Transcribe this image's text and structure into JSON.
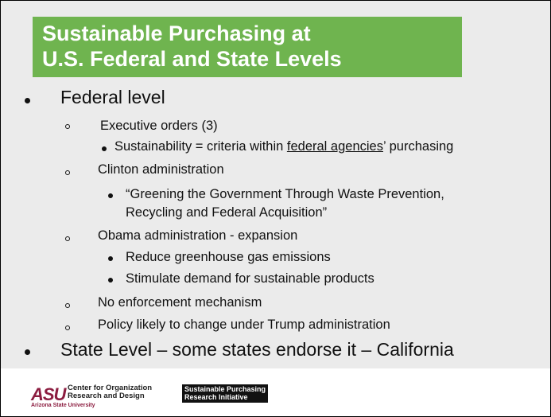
{
  "slide": {
    "title": [
      "Sustainable Purchasing at",
      "U.S. Federal and State Levels"
    ],
    "items": [
      {
        "text": "Federal level"
      },
      {
        "text": "Executive orders (3)"
      },
      {
        "parts": [
          "Sustainability = criteria within ",
          "federal agencies",
          "’ purchasing"
        ]
      },
      {
        "text": "Clinton administration"
      },
      {
        "lines": [
          "“Greening the Government Through Waste Prevention,",
          "Recycling and Federal Acquisition”"
        ]
      },
      {
        "text": "Obama administration - expansion"
      },
      {
        "text": "Reduce greenhouse gas emissions"
      },
      {
        "text": "Stimulate demand for sustainable products"
      },
      {
        "text": "No enforcement mechanism"
      },
      {
        "text": "Policy likely to change under Trump administration"
      },
      {
        "text": "State Level – some states endorse it – California"
      }
    ]
  },
  "footer": {
    "logo": "ASU",
    "center": [
      "Center for Organization",
      "Research and Design"
    ],
    "university": "Arizona State University",
    "initiative": [
      "Sustainable Purchasing",
      "Research Initiative"
    ]
  }
}
